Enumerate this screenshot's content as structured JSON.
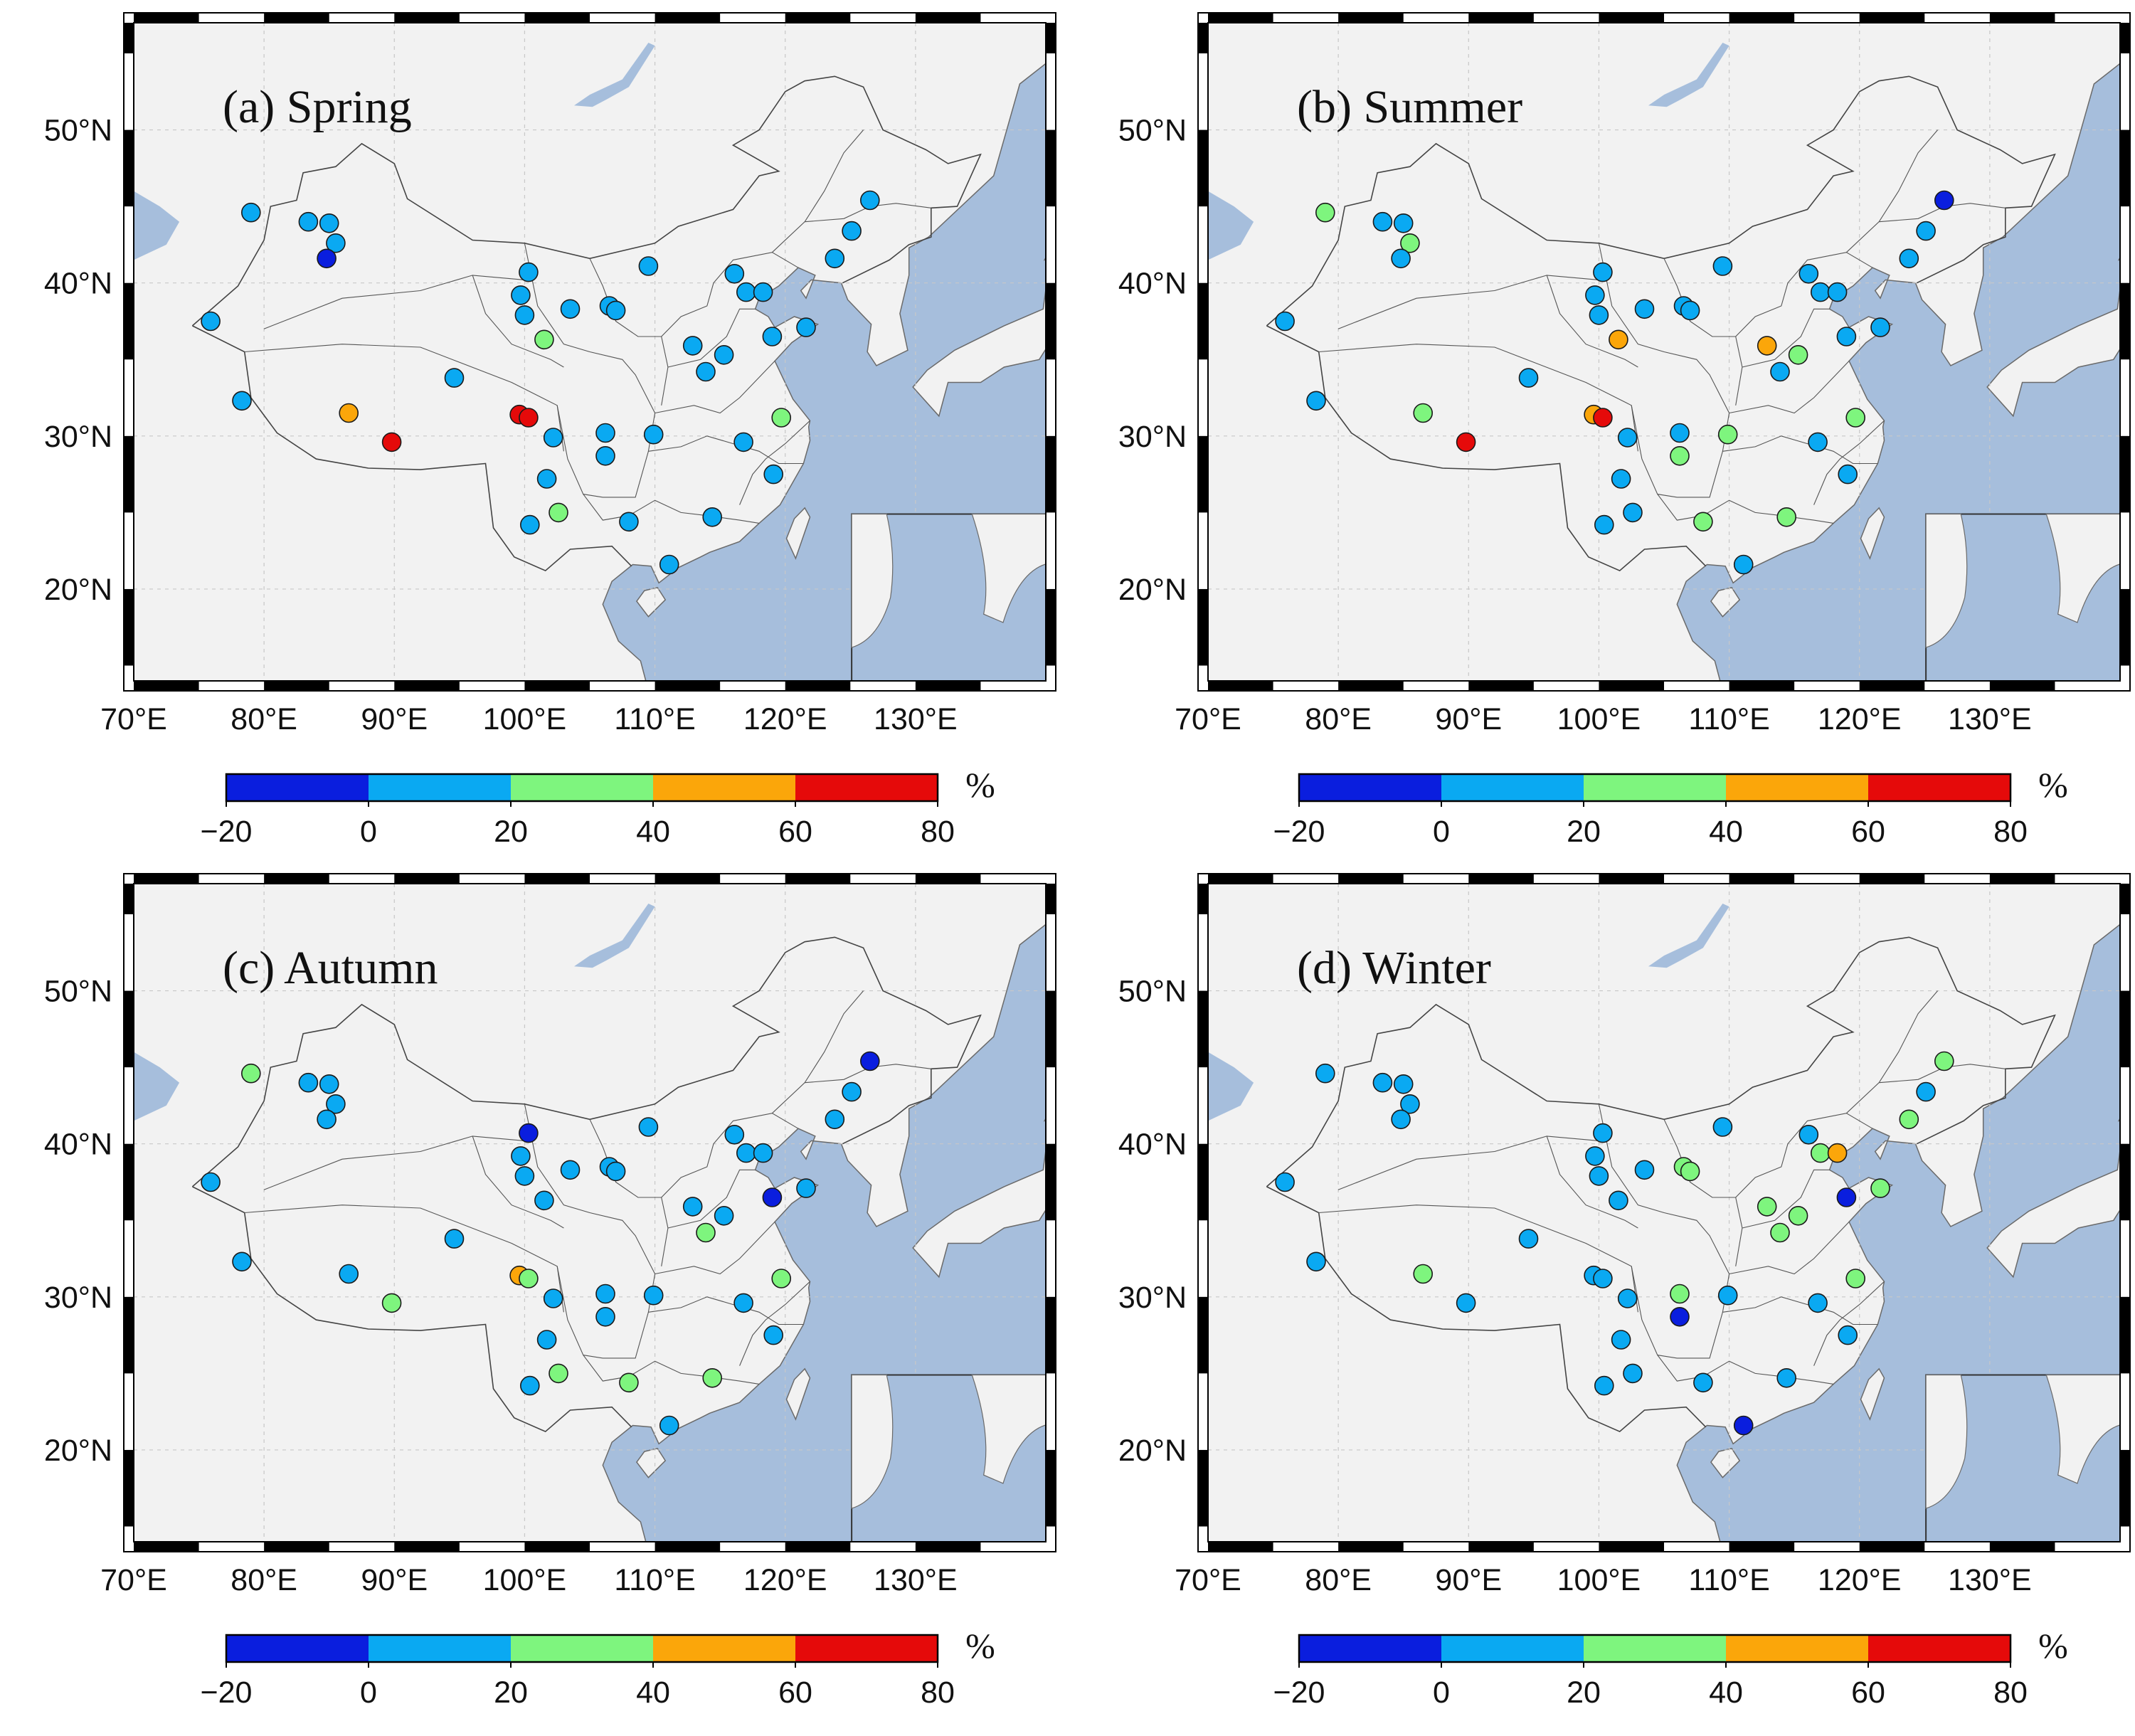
{
  "figure": {
    "layout": "2x2 grid of seasonal maps",
    "map_background": "#f2f2f2",
    "sea_color": "#a6bedc",
    "colorbar": {
      "unit": "%",
      "bins": [
        -20,
        0,
        20,
        40,
        60,
        80
      ],
      "tick_labels": [
        "−20",
        "0",
        "20",
        "40",
        "60",
        "80"
      ],
      "colors": [
        "#0a1ede",
        "#0aa9f2",
        "#7ef57e",
        "#fba60a",
        "#e50a0a"
      ]
    }
  },
  "chart_data": [
    {
      "type": "scatter",
      "title": "(a) Spring",
      "x_tick_labels": [
        "70°E",
        "80°E",
        "90°E",
        "100°E",
        "110°E",
        "120°E",
        "130°E"
      ],
      "y_tick_labels": [
        "20°N",
        "30°N",
        "40°N",
        "50°N"
      ],
      "xlim": [
        70,
        140
      ],
      "ylim": [
        14,
        57
      ],
      "stations": [
        [
          75.9,
          37.5,
          10
        ],
        [
          79.0,
          44.6,
          10
        ],
        [
          78.3,
          32.3,
          10
        ],
        [
          83.4,
          44.0,
          10
        ],
        [
          85.0,
          43.9,
          10
        ],
        [
          85.5,
          42.6,
          10
        ],
        [
          84.8,
          41.6,
          -10
        ],
        [
          86.5,
          31.5,
          50
        ],
        [
          89.8,
          29.6,
          70
        ],
        [
          94.6,
          33.8,
          10
        ],
        [
          100.3,
          40.7,
          10
        ],
        [
          99.7,
          39.2,
          10
        ],
        [
          100.0,
          37.9,
          10
        ],
        [
          101.5,
          36.3,
          30
        ],
        [
          103.5,
          38.3,
          10
        ],
        [
          106.5,
          38.5,
          10
        ],
        [
          107.0,
          38.2,
          10
        ],
        [
          109.5,
          41.1,
          10
        ],
        [
          99.6,
          31.4,
          70
        ],
        [
          100.3,
          31.2,
          70
        ],
        [
          102.2,
          29.9,
          10
        ],
        [
          101.7,
          27.2,
          10
        ],
        [
          100.4,
          24.2,
          10
        ],
        [
          102.6,
          25.0,
          30
        ],
        [
          106.2,
          30.2,
          10
        ],
        [
          106.2,
          28.7,
          10
        ],
        [
          109.9,
          30.1,
          10
        ],
        [
          108.0,
          24.4,
          10
        ],
        [
          111.1,
          21.6,
          10
        ],
        [
          112.9,
          35.9,
          10
        ],
        [
          113.9,
          34.2,
          10
        ],
        [
          115.3,
          35.3,
          10
        ],
        [
          116.1,
          40.6,
          10
        ],
        [
          117.0,
          39.4,
          10
        ],
        [
          118.3,
          39.4,
          10
        ],
        [
          119.0,
          36.5,
          10
        ],
        [
          121.6,
          37.1,
          10
        ],
        [
          116.8,
          29.6,
          10
        ],
        [
          119.7,
          31.2,
          30
        ],
        [
          119.1,
          27.5,
          10
        ],
        [
          114.4,
          24.7,
          10
        ],
        [
          123.8,
          41.6,
          10
        ],
        [
          125.1,
          43.4,
          10
        ],
        [
          126.5,
          45.4,
          10
        ]
      ]
    },
    {
      "type": "scatter",
      "title": "(b) Summer",
      "x_tick_labels": [
        "70°E",
        "80°E",
        "90°E",
        "100°E",
        "110°E",
        "120°E",
        "130°E"
      ],
      "y_tick_labels": [
        "20°N",
        "30°N",
        "40°N",
        "50°N"
      ],
      "xlim": [
        70,
        140
      ],
      "ylim": [
        14,
        57
      ],
      "stations": [
        [
          75.9,
          37.5,
          10
        ],
        [
          79.0,
          44.6,
          30
        ],
        [
          78.3,
          32.3,
          10
        ],
        [
          83.4,
          44.0,
          10
        ],
        [
          85.0,
          43.9,
          10
        ],
        [
          85.5,
          42.6,
          30
        ],
        [
          84.8,
          41.6,
          10
        ],
        [
          86.5,
          31.5,
          30
        ],
        [
          89.8,
          29.6,
          70
        ],
        [
          94.6,
          33.8,
          10
        ],
        [
          100.3,
          40.7,
          10
        ],
        [
          99.7,
          39.2,
          10
        ],
        [
          100.0,
          37.9,
          10
        ],
        [
          101.5,
          36.3,
          50
        ],
        [
          103.5,
          38.3,
          10
        ],
        [
          106.5,
          38.5,
          10
        ],
        [
          107.0,
          38.2,
          10
        ],
        [
          109.5,
          41.1,
          10
        ],
        [
          99.6,
          31.4,
          50
        ],
        [
          100.3,
          31.2,
          70
        ],
        [
          102.2,
          29.9,
          10
        ],
        [
          101.7,
          27.2,
          10
        ],
        [
          100.4,
          24.2,
          10
        ],
        [
          102.6,
          25.0,
          10
        ],
        [
          106.2,
          30.2,
          10
        ],
        [
          106.2,
          28.7,
          30
        ],
        [
          109.9,
          30.1,
          30
        ],
        [
          108.0,
          24.4,
          30
        ],
        [
          111.1,
          21.6,
          10
        ],
        [
          112.9,
          35.9,
          50
        ],
        [
          113.9,
          34.2,
          10
        ],
        [
          115.3,
          35.3,
          30
        ],
        [
          116.1,
          40.6,
          10
        ],
        [
          117.0,
          39.4,
          10
        ],
        [
          118.3,
          39.4,
          10
        ],
        [
          119.0,
          36.5,
          10
        ],
        [
          121.6,
          37.1,
          10
        ],
        [
          116.8,
          29.6,
          10
        ],
        [
          119.7,
          31.2,
          30
        ],
        [
          119.1,
          27.5,
          10
        ],
        [
          114.4,
          24.7,
          30
        ],
        [
          123.8,
          41.6,
          10
        ],
        [
          125.1,
          43.4,
          10
        ],
        [
          126.5,
          45.4,
          -10
        ]
      ]
    },
    {
      "type": "scatter",
      "title": "(c) Autumn",
      "x_tick_labels": [
        "70°E",
        "80°E",
        "90°E",
        "100°E",
        "110°E",
        "120°E",
        "130°E"
      ],
      "y_tick_labels": [
        "20°N",
        "30°N",
        "40°N",
        "50°N"
      ],
      "xlim": [
        70,
        140
      ],
      "ylim": [
        14,
        57
      ],
      "stations": [
        [
          75.9,
          37.5,
          10
        ],
        [
          79.0,
          44.6,
          30
        ],
        [
          78.3,
          32.3,
          10
        ],
        [
          83.4,
          44.0,
          10
        ],
        [
          85.0,
          43.9,
          10
        ],
        [
          85.5,
          42.6,
          10
        ],
        [
          84.8,
          41.6,
          10
        ],
        [
          86.5,
          31.5,
          10
        ],
        [
          89.8,
          29.6,
          30
        ],
        [
          94.6,
          33.8,
          10
        ],
        [
          100.3,
          40.7,
          -10
        ],
        [
          99.7,
          39.2,
          10
        ],
        [
          100.0,
          37.9,
          10
        ],
        [
          101.5,
          36.3,
          10
        ],
        [
          103.5,
          38.3,
          10
        ],
        [
          106.5,
          38.5,
          10
        ],
        [
          107.0,
          38.2,
          10
        ],
        [
          109.5,
          41.1,
          10
        ],
        [
          99.6,
          31.4,
          50
        ],
        [
          100.3,
          31.2,
          30
        ],
        [
          102.2,
          29.9,
          10
        ],
        [
          101.7,
          27.2,
          10
        ],
        [
          100.4,
          24.2,
          10
        ],
        [
          102.6,
          25.0,
          30
        ],
        [
          106.2,
          30.2,
          10
        ],
        [
          106.2,
          28.7,
          10
        ],
        [
          109.9,
          30.1,
          10
        ],
        [
          108.0,
          24.4,
          30
        ],
        [
          111.1,
          21.6,
          10
        ],
        [
          112.9,
          35.9,
          10
        ],
        [
          113.9,
          34.2,
          30
        ],
        [
          115.3,
          35.3,
          10
        ],
        [
          116.1,
          40.6,
          10
        ],
        [
          117.0,
          39.4,
          10
        ],
        [
          118.3,
          39.4,
          10
        ],
        [
          119.0,
          36.5,
          -10
        ],
        [
          121.6,
          37.1,
          10
        ],
        [
          116.8,
          29.6,
          10
        ],
        [
          119.7,
          31.2,
          30
        ],
        [
          119.1,
          27.5,
          10
        ],
        [
          114.4,
          24.7,
          30
        ],
        [
          123.8,
          41.6,
          10
        ],
        [
          125.1,
          43.4,
          10
        ],
        [
          126.5,
          45.4,
          -10
        ]
      ]
    },
    {
      "type": "scatter",
      "title": "(d) Winter",
      "x_tick_labels": [
        "70°E",
        "80°E",
        "90°E",
        "100°E",
        "110°E",
        "120°E",
        "130°E"
      ],
      "y_tick_labels": [
        "20°N",
        "30°N",
        "40°N",
        "50°N"
      ],
      "xlim": [
        70,
        140
      ],
      "ylim": [
        14,
        57
      ],
      "stations": [
        [
          75.9,
          37.5,
          10
        ],
        [
          79.0,
          44.6,
          10
        ],
        [
          78.3,
          32.3,
          10
        ],
        [
          83.4,
          44.0,
          10
        ],
        [
          85.0,
          43.9,
          10
        ],
        [
          85.5,
          42.6,
          10
        ],
        [
          84.8,
          41.6,
          10
        ],
        [
          86.5,
          31.5,
          30
        ],
        [
          89.8,
          29.6,
          10
        ],
        [
          94.6,
          33.8,
          10
        ],
        [
          100.3,
          40.7,
          10
        ],
        [
          99.7,
          39.2,
          10
        ],
        [
          100.0,
          37.9,
          10
        ],
        [
          101.5,
          36.3,
          10
        ],
        [
          103.5,
          38.3,
          10
        ],
        [
          106.5,
          38.5,
          30
        ],
        [
          107.0,
          38.2,
          30
        ],
        [
          109.5,
          41.1,
          10
        ],
        [
          99.6,
          31.4,
          10
        ],
        [
          100.3,
          31.2,
          10
        ],
        [
          102.2,
          29.9,
          10
        ],
        [
          101.7,
          27.2,
          10
        ],
        [
          100.4,
          24.2,
          10
        ],
        [
          102.6,
          25.0,
          10
        ],
        [
          106.2,
          30.2,
          30
        ],
        [
          106.2,
          28.7,
          -10
        ],
        [
          109.9,
          30.1,
          10
        ],
        [
          108.0,
          24.4,
          10
        ],
        [
          111.1,
          21.6,
          -10
        ],
        [
          112.9,
          35.9,
          30
        ],
        [
          113.9,
          34.2,
          30
        ],
        [
          115.3,
          35.3,
          30
        ],
        [
          116.1,
          40.6,
          10
        ],
        [
          117.0,
          39.4,
          30
        ],
        [
          118.3,
          39.4,
          50
        ],
        [
          119.0,
          36.5,
          -10
        ],
        [
          121.6,
          37.1,
          30
        ],
        [
          116.8,
          29.6,
          10
        ],
        [
          119.7,
          31.2,
          30
        ],
        [
          119.1,
          27.5,
          10
        ],
        [
          114.4,
          24.7,
          10
        ],
        [
          123.8,
          41.6,
          30
        ],
        [
          125.1,
          43.4,
          10
        ],
        [
          126.5,
          45.4,
          30
        ]
      ]
    }
  ]
}
